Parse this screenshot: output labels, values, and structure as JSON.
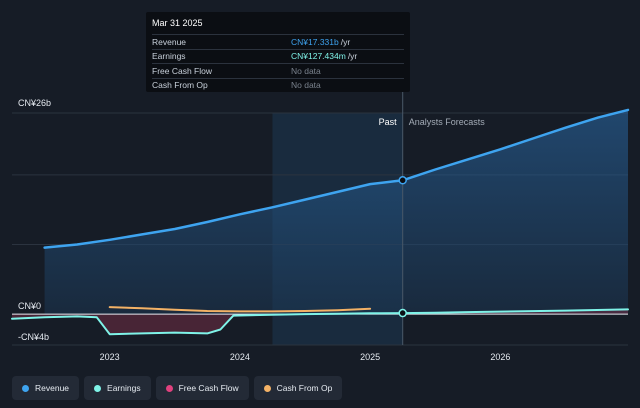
{
  "chart_data": {
    "type": "area",
    "y_axis": {
      "top_label": "CN¥26b",
      "zero_label": "CN¥0",
      "bottom_label": "-CN¥4b",
      "ylim": [
        -4,
        26
      ]
    },
    "x_axis": {
      "tick_labels": [
        "2023",
        "2024",
        "2025",
        "2026"
      ],
      "xlim": [
        2022.25,
        2026.98
      ]
    },
    "divider": {
      "x": 2025.25,
      "past_label": "Past",
      "forecast_label": "Analysts Forecasts",
      "shade_from_x": 2024.25
    },
    "series": [
      {
        "name": "Revenue",
        "color": "#3ea4f0",
        "x": [
          2022.5,
          2022.75,
          2023.0,
          2023.25,
          2023.5,
          2023.75,
          2024.0,
          2024.25,
          2024.5,
          2024.75,
          2025.0,
          2025.25,
          2025.5,
          2025.75,
          2026.0,
          2026.25,
          2026.5,
          2026.75,
          2026.98
        ],
        "values": [
          8.6,
          9.0,
          9.6,
          10.3,
          11.0,
          11.9,
          12.9,
          13.8,
          14.8,
          15.8,
          16.8,
          17.3,
          18.7,
          20.0,
          21.3,
          22.7,
          24.1,
          25.4,
          26.4
        ]
      },
      {
        "name": "Earnings",
        "color": "#7ff3e8",
        "x": [
          2022.25,
          2022.5,
          2022.75,
          2022.9,
          2023.0,
          2023.25,
          2023.5,
          2023.75,
          2023.85,
          2023.95,
          2024.25,
          2024.5,
          2024.75,
          2025.0,
          2025.25,
          2025.5,
          2025.75,
          2026.0,
          2026.5,
          2026.98
        ],
        "values": [
          -0.6,
          -0.4,
          -0.3,
          -0.4,
          -2.6,
          -2.5,
          -2.4,
          -2.5,
          -2.0,
          -0.2,
          -0.1,
          0.0,
          0.05,
          0.1,
          0.13,
          0.18,
          0.25,
          0.32,
          0.45,
          0.6
        ]
      },
      {
        "name": "Free Cash Flow",
        "color": "#e0417e",
        "x": [],
        "values": []
      },
      {
        "name": "Cash From Op",
        "color": "#f3b266",
        "x": [
          2023.0,
          2023.25,
          2023.5,
          2023.75,
          2024.0,
          2024.25,
          2024.5,
          2024.75,
          2025.0
        ],
        "values": [
          0.9,
          0.75,
          0.55,
          0.4,
          0.35,
          0.35,
          0.4,
          0.5,
          0.7
        ]
      }
    ],
    "highlight": {
      "x": 2025.25
    }
  },
  "tooltip": {
    "date": "Mar 31 2025",
    "rows": [
      {
        "label": "Revenue",
        "value": "CN¥17.331b",
        "unit": "/yr"
      },
      {
        "label": "Earnings",
        "value": "CN¥127.434m",
        "unit": "/yr"
      },
      {
        "label": "Free Cash Flow",
        "value": "No data",
        "unit": ""
      },
      {
        "label": "Cash From Op",
        "value": "No data",
        "unit": ""
      }
    ]
  },
  "legend": [
    {
      "label": "Revenue",
      "color": "#3ea4f0"
    },
    {
      "label": "Earnings",
      "color": "#7ff3e8"
    },
    {
      "label": "Free Cash Flow",
      "color": "#e0417e"
    },
    {
      "label": "Cash From Op",
      "color": "#f3b266"
    }
  ]
}
